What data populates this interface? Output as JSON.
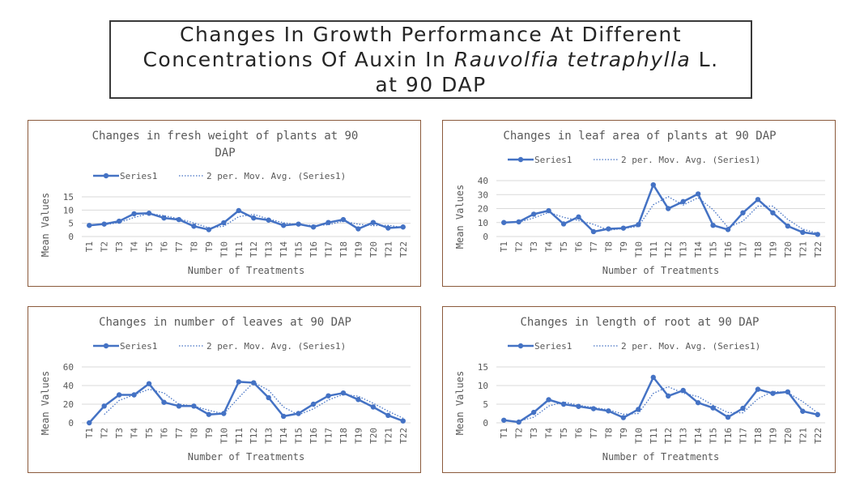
{
  "page_title": {
    "line1": "Changes In Growth Performance At Different",
    "line2_prefix": "Concentrations Of Auxin In ",
    "line2_species": "Rauvolfia tetraphylla",
    "line2_suffix": " L.",
    "line3": "at 90 DAP"
  },
  "colors": {
    "series": "#4472c4",
    "panel_border": "#8b5a3c",
    "text": "#595959",
    "gridline": "#d9d9d9"
  },
  "chart_data": [
    {
      "type": "line",
      "title_lines": [
        "Changes in fresh weight of plants at 90",
        "DAP"
      ],
      "xlabel": "Number of Treatments",
      "ylabel": "Mean Values",
      "ylim": [
        0,
        15
      ],
      "yticks": [
        0,
        5,
        10,
        15
      ],
      "grid": true,
      "legend_position": "top",
      "categories": [
        "T1",
        "T2",
        "T3",
        "T4",
        "T5",
        "T6",
        "T7",
        "T8",
        "T9",
        "T10",
        "T11",
        "T12",
        "T13",
        "T14",
        "T15",
        "T16",
        "T17",
        "T18",
        "T19",
        "T20",
        "T21",
        "T22"
      ],
      "series": [
        {
          "name": "Series1",
          "style": "solid-markers",
          "values": [
            4.2,
            4.7,
            5.8,
            8.6,
            8.8,
            7.0,
            6.4,
            3.9,
            2.6,
            5.2,
            9.8,
            7.0,
            6.2,
            4.2,
            4.7,
            3.6,
            5.3,
            6.4,
            2.9,
            5.3,
            3.2,
            3.6
          ]
        },
        {
          "name": "2 per. Mov. Avg. (Series1)",
          "style": "dotted",
          "values": [
            null,
            4.45,
            5.25,
            7.2,
            8.7,
            7.9,
            6.7,
            5.15,
            3.25,
            3.9,
            7.5,
            8.4,
            6.6,
            5.2,
            4.45,
            4.15,
            4.45,
            5.85,
            4.65,
            4.1,
            4.25,
            3.4
          ]
        }
      ]
    },
    {
      "type": "line",
      "title_lines": [
        "Changes in leaf area of plants at 90 DAP"
      ],
      "xlabel": "Number of Treatments",
      "ylabel": "Mean Values",
      "ylim": [
        0,
        40
      ],
      "yticks": [
        0,
        10,
        20,
        30,
        40
      ],
      "grid": true,
      "legend_position": "top",
      "categories": [
        "T1",
        "T2",
        "T3",
        "T4",
        "T5",
        "T6",
        "T7",
        "T8",
        "T9",
        "T10",
        "T11",
        "T12",
        "T13",
        "T14",
        "T15",
        "T16",
        "T17",
        "T18",
        "T19",
        "T20",
        "T21",
        "T22"
      ],
      "series": [
        {
          "name": "Series1",
          "style": "solid-markers",
          "values": [
            10,
            10.5,
            16,
            18.5,
            9,
            14,
            3.5,
            5.5,
            6,
            8.5,
            37,
            20,
            25,
            30.5,
            8,
            5,
            17,
            26.5,
            17,
            7.5,
            3,
            1.5
          ]
        },
        {
          "name": "2 per. Mov. Avg. (Series1)",
          "style": "dotted",
          "values": [
            null,
            10.25,
            13.25,
            17.25,
            13.75,
            11.5,
            8.75,
            4.5,
            5.75,
            7.25,
            22.75,
            28.5,
            22.5,
            27.75,
            19.25,
            6.5,
            11,
            21.75,
            21.75,
            12.25,
            5.25,
            2.25
          ]
        }
      ]
    },
    {
      "type": "line",
      "title_lines": [
        "Changes in number of leaves at 90 DAP"
      ],
      "xlabel": "Number of Treatments",
      "ylabel": "Mean Values",
      "ylim": [
        0,
        60
      ],
      "yticks": [
        0,
        20,
        40,
        60
      ],
      "grid": true,
      "legend_position": "top",
      "categories": [
        "T1",
        "T2",
        "T3",
        "T4",
        "T5",
        "T6",
        "T7",
        "T8",
        "T9",
        "T10",
        "T11",
        "T12",
        "T13",
        "T14",
        "T15",
        "T16",
        "T17",
        "T18",
        "T19",
        "T20",
        "T21",
        "T22"
      ],
      "series": [
        {
          "name": "Series1",
          "style": "solid-markers",
          "values": [
            0,
            18,
            30,
            30,
            42,
            22,
            18,
            18,
            9,
            10,
            44,
            43,
            27,
            7,
            10,
            20,
            29,
            32,
            25,
            17,
            8,
            2
          ]
        },
        {
          "name": "2 per. Mov. Avg. (Series1)",
          "style": "dotted",
          "values": [
            null,
            9,
            24,
            30,
            36,
            32,
            20,
            18,
            13.5,
            9.5,
            27,
            43.5,
            35,
            17,
            8.5,
            15,
            24.5,
            30.5,
            28.5,
            21,
            12.5,
            5
          ]
        }
      ]
    },
    {
      "type": "line",
      "title_lines": [
        "Changes in length of root at 90 DAP"
      ],
      "xlabel": "Number of Treatments",
      "ylabel": "Mean Values",
      "ylim": [
        0,
        15
      ],
      "yticks": [
        0,
        5,
        10,
        15
      ],
      "grid": true,
      "legend_position": "top",
      "categories": [
        "T1",
        "T2",
        "T3",
        "T4",
        "T5",
        "T6",
        "T7",
        "T8",
        "T9",
        "T10",
        "T11",
        "T12",
        "T13",
        "T14",
        "T15",
        "T16",
        "T17",
        "T18",
        "T19",
        "T20",
        "T21",
        "T22"
      ],
      "series": [
        {
          "name": "Series1",
          "style": "solid-markers",
          "values": [
            0.7,
            0.2,
            2.8,
            6.2,
            5.0,
            4.4,
            3.8,
            3.2,
            1.4,
            3.6,
            12.2,
            7.2,
            8.7,
            5.4,
            4.0,
            1.5,
            3.9,
            9.0,
            7.9,
            8.3,
            3.1,
            2.2
          ]
        },
        {
          "name": "2 per. Mov. Avg. (Series1)",
          "style": "dotted",
          "values": [
            null,
            0.45,
            1.5,
            4.5,
            5.6,
            4.7,
            4.1,
            3.5,
            2.3,
            2.5,
            7.9,
            9.7,
            7.95,
            7.05,
            4.7,
            2.75,
            2.7,
            6.45,
            8.45,
            8.1,
            5.7,
            2.65
          ]
        }
      ]
    }
  ]
}
